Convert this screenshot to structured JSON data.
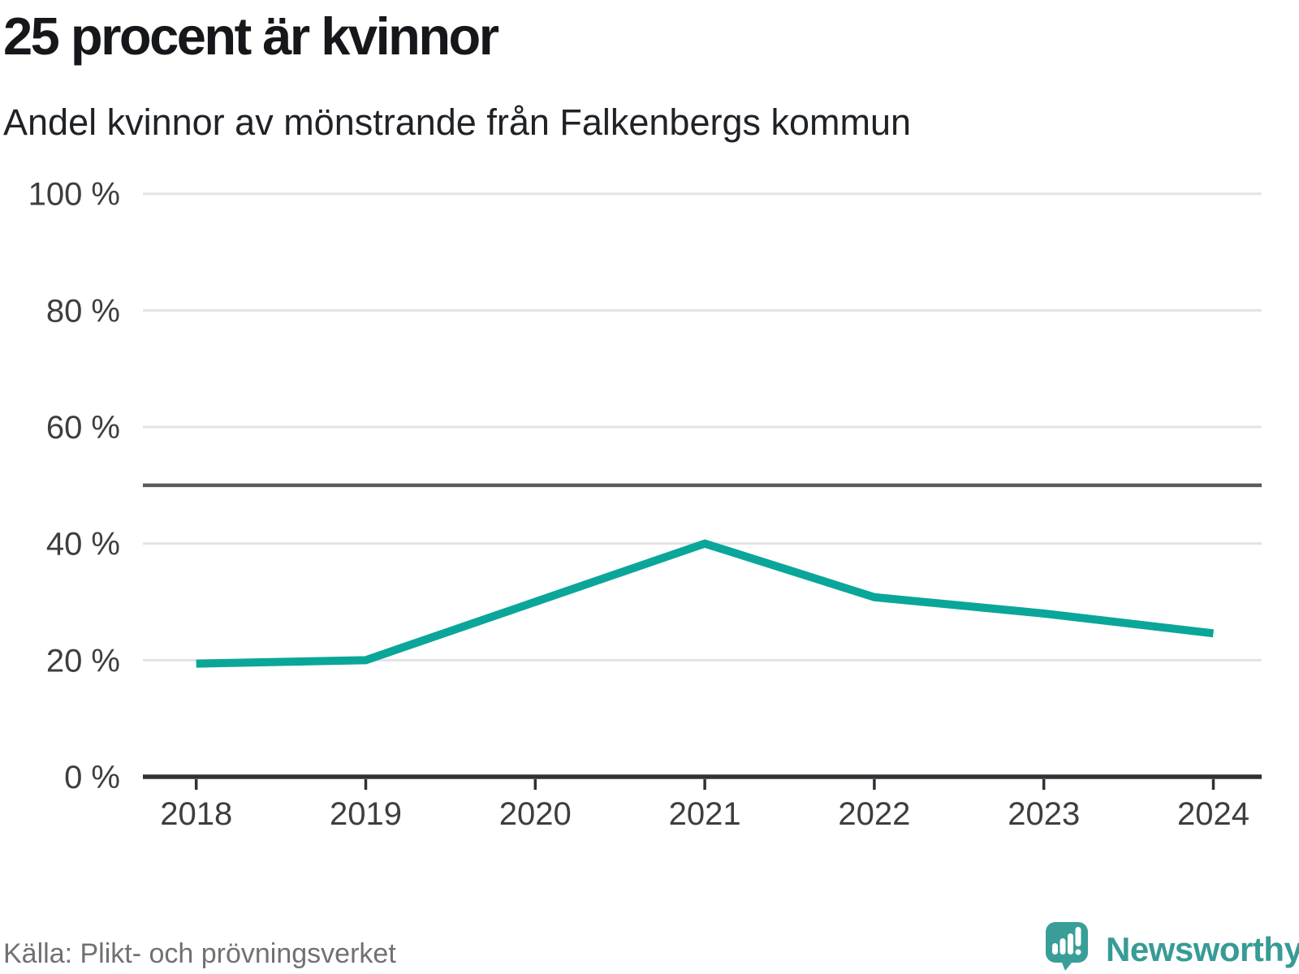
{
  "header": {
    "title": "25 procent är kvinnor",
    "subtitle": "Andel kvinnor av mönstrande från Falkenbergs kommun"
  },
  "footer": {
    "source": "Källa: Plikt- och prövningsverket",
    "brand": "Newsworthy"
  },
  "colors": {
    "line": "#0ba69a",
    "gridline": "#e3e3e3",
    "refline": "#5a5b5f",
    "axis": "#303135",
    "tick_label": "#3d3e40",
    "logo": "#3a9e98",
    "brand_text": "#379b96",
    "source_text": "#6f7173"
  },
  "chart_data": {
    "type": "line",
    "title": "25 procent är kvinnor",
    "subtitle": "Andel kvinnor av mönstrande från Falkenbergs kommun",
    "categories": [
      "2018",
      "2019",
      "2020",
      "2021",
      "2022",
      "2023",
      "2024"
    ],
    "series": [
      {
        "name": "Andel kvinnor av mönstrande",
        "values": [
          19.4,
          20,
          30,
          40,
          30.8,
          28,
          24.6
        ]
      }
    ],
    "unit": "%",
    "xlabel": "",
    "ylabel": "",
    "ylim": [
      0,
      100
    ],
    "yticks": [
      {
        "value": 0,
        "label": "0 %"
      },
      {
        "value": 20,
        "label": "20 %"
      },
      {
        "value": 40,
        "label": "40 %"
      },
      {
        "value": 60,
        "label": "60 %"
      },
      {
        "value": 80,
        "label": "80 %"
      },
      {
        "value": 100,
        "label": "100 %"
      }
    ],
    "refline": {
      "value": 50,
      "label": ""
    },
    "grid": "horizontal",
    "legend": "none",
    "source": "Källa: Plikt- och prövningsverket"
  }
}
